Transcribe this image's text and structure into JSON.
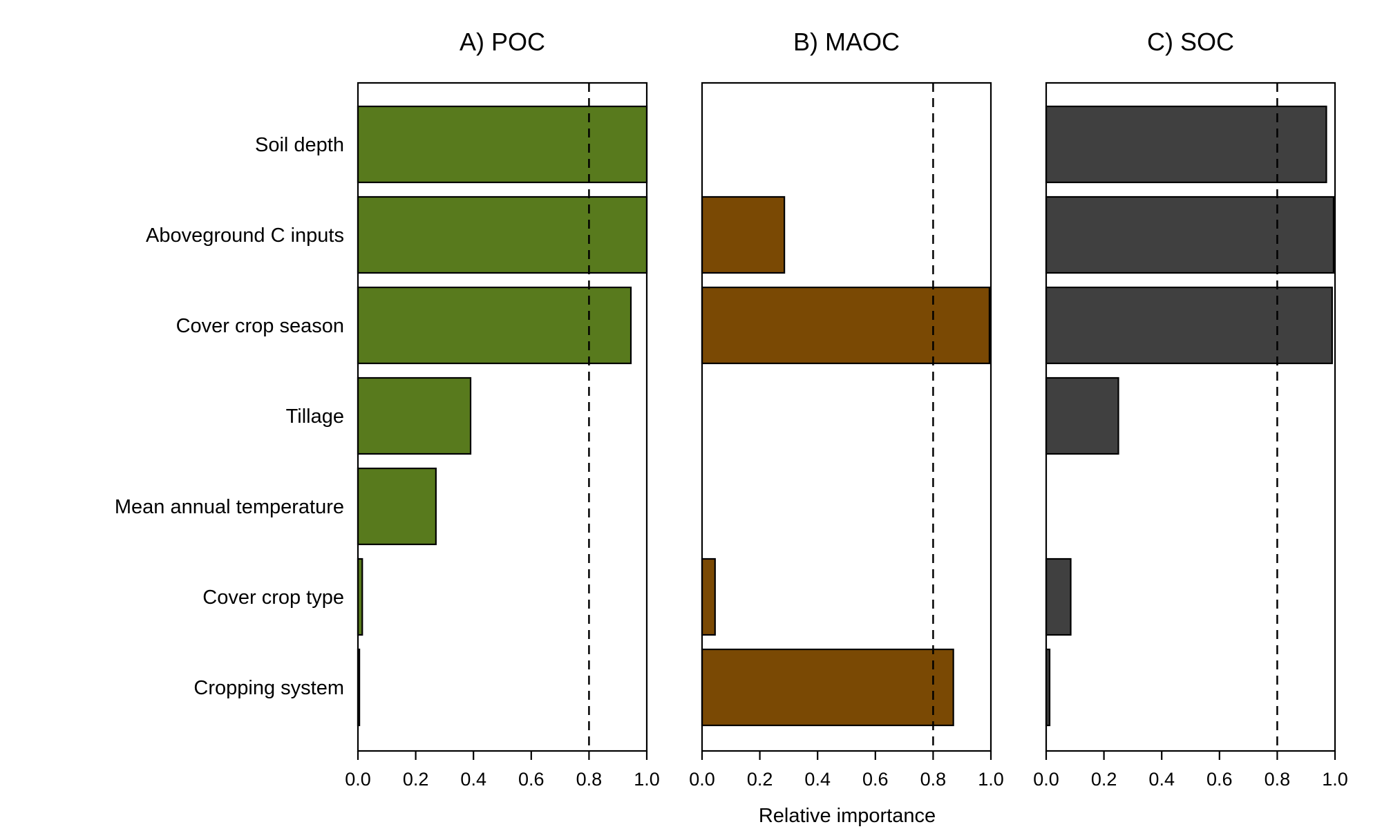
{
  "chart_data": {
    "type": "bar",
    "orientation": "horizontal",
    "categories": [
      "Soil depth",
      "Aboveground C inputs",
      "Cover crop season",
      "Tillage",
      "Mean annual temperature",
      "Cover crop type",
      "Cropping system"
    ],
    "xlabel": "Relative importance",
    "xlim": [
      0,
      1
    ],
    "xticks": [
      "0.0",
      "0.2",
      "0.4",
      "0.6",
      "0.8",
      "1.0"
    ],
    "reference_line": 0.8,
    "grid": false,
    "panels": [
      {
        "title": "A) POC",
        "color": "#587a1d",
        "values": [
          1.0,
          1.0,
          0.945,
          0.39,
          0.27,
          0.015,
          0.005
        ]
      },
      {
        "title": "B) MAOC",
        "color": "#7a4904",
        "values": [
          null,
          0.285,
          0.995,
          null,
          null,
          0.045,
          0.87
        ]
      },
      {
        "title": "C) SOC",
        "color": "#404040",
        "values": [
          0.97,
          0.995,
          0.99,
          0.25,
          null,
          0.085,
          0.012
        ]
      }
    ]
  }
}
